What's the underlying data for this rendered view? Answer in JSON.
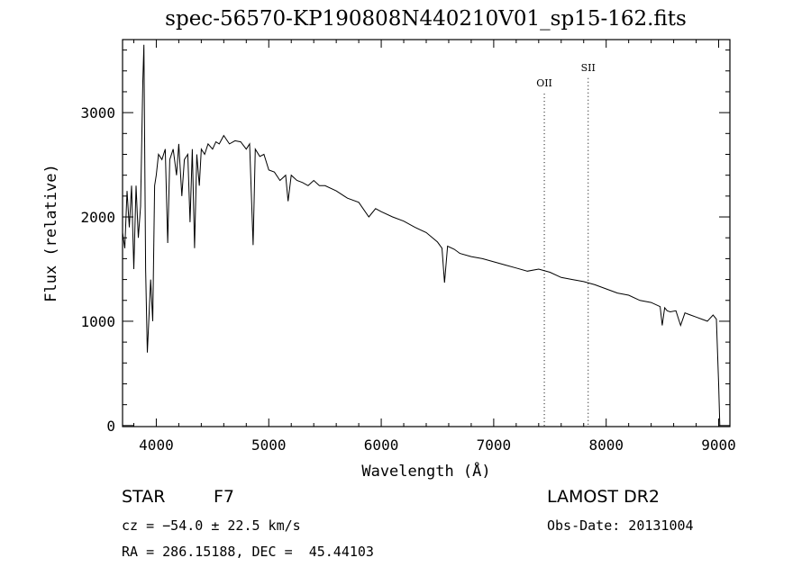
{
  "title": "spec-56570-KP190808N440210V01_sp15-162.fits",
  "info": {
    "class_label": "STAR",
    "subclass_label": "F7",
    "survey": "LAMOST DR2",
    "cz": "cz = −54.0 ± 22.5 km/s",
    "obs_date": "Obs-Date: 20131004",
    "radec": "RA = 286.15188, DEC =  45.44103"
  },
  "chart_data": {
    "type": "line",
    "title": "spec-56570-KP190808N440210V01_sp15-162.fits",
    "xlabel": "Wavelength (Å)",
    "ylabel": "Flux (relative)",
    "xlim": [
      3700,
      9100
    ],
    "ylim": [
      -10,
      3700
    ],
    "xticks": [
      4000,
      5000,
      6000,
      7000,
      8000,
      9000
    ],
    "yticks": [
      0,
      1000,
      2000,
      3000
    ],
    "series": [
      {
        "x": [
          3700,
          3720,
          3740,
          3760,
          3780,
          3800,
          3820,
          3840,
          3860,
          3880,
          3890,
          3905,
          3920,
          3933,
          3950,
          3968,
          3985,
          4000,
          4020,
          4050,
          4080,
          4101,
          4120,
          4150,
          4180,
          4200,
          4227,
          4250,
          4280,
          4300,
          4320,
          4340,
          4360,
          4383,
          4400,
          4430,
          4460,
          4500,
          4530,
          4560,
          4600,
          4650,
          4700,
          4750,
          4800,
          4830,
          4861,
          4880,
          4920,
          4957,
          5000,
          5050,
          5100,
          5150,
          5172,
          5200,
          5250,
          5300,
          5350,
          5400,
          5450,
          5500,
          5600,
          5700,
          5800,
          5890,
          5950,
          6000,
          6100,
          6200,
          6300,
          6400,
          6500,
          6540,
          6563,
          6590,
          6650,
          6700,
          6800,
          6900,
          7000,
          7100,
          7200,
          7300,
          7400,
          7500,
          7600,
          7700,
          7800,
          7900,
          8000,
          8100,
          8200,
          8300,
          8400,
          8480,
          8498,
          8520,
          8542,
          8570,
          8620,
          8662,
          8700,
          8750,
          8800,
          8850,
          8900,
          8950,
          8980,
          9000,
          9010
        ],
        "y": [
          1850,
          1700,
          2250,
          1900,
          2300,
          1500,
          2300,
          1800,
          2100,
          3300,
          3650,
          1500,
          700,
          1000,
          1400,
          1000,
          2300,
          2400,
          2600,
          2550,
          2650,
          1750,
          2550,
          2650,
          2400,
          2700,
          2200,
          2550,
          2600,
          1950,
          2650,
          1700,
          2600,
          2300,
          2650,
          2600,
          2700,
          2650,
          2720,
          2700,
          2780,
          2700,
          2730,
          2720,
          2650,
          2700,
          1730,
          2650,
          2580,
          2600,
          2450,
          2430,
          2350,
          2400,
          2150,
          2400,
          2350,
          2330,
          2300,
          2350,
          2300,
          2300,
          2250,
          2180,
          2140,
          2000,
          2080,
          2050,
          2000,
          1960,
          1900,
          1850,
          1760,
          1700,
          1370,
          1720,
          1690,
          1650,
          1620,
          1600,
          1570,
          1540,
          1510,
          1480,
          1500,
          1470,
          1420,
          1400,
          1380,
          1350,
          1310,
          1270,
          1250,
          1200,
          1180,
          1140,
          960,
          1130,
          1100,
          1090,
          1100,
          960,
          1080,
          1060,
          1040,
          1020,
          1000,
          1060,
          1020,
          400,
          0
        ]
      }
    ],
    "annotations": [
      {
        "label": "OII",
        "x": 7450,
        "y": 3250
      },
      {
        "label": "SII",
        "x": 7840,
        "y": 3400
      }
    ]
  }
}
